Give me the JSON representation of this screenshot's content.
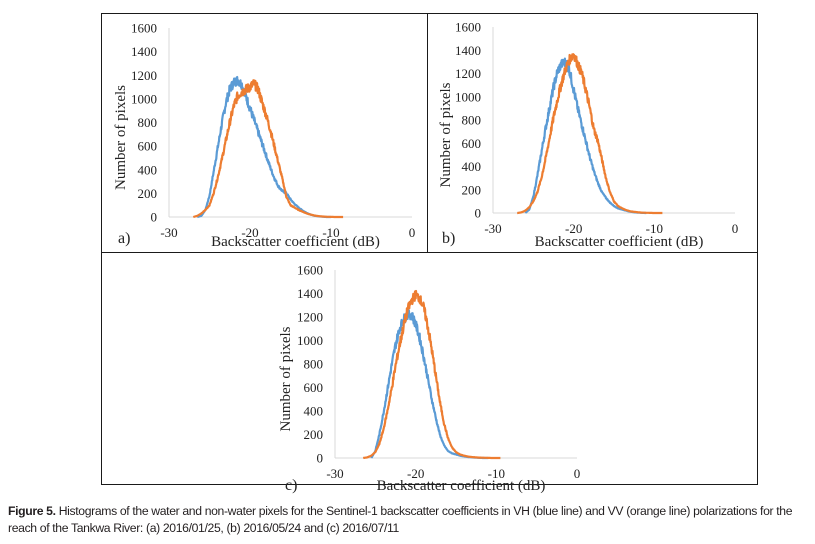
{
  "figure": {
    "caption_label": "Figure 5.",
    "caption_text": " Histograms of the water and non-water pixels for the Sentinel-1 backscatter coefficients in VH (blue line) and VV (orange line) polarizations for the reach of the Tankwa River: (a) 2016/01/25, (b) 2016/05/24 and (c) 2016/07/11"
  },
  "colors": {
    "VH": "#5b9bd5",
    "VV": "#ed7d31",
    "axis": "#d9d9d9"
  },
  "chart_data": [
    {
      "panel": "a)",
      "type": "line",
      "title": "",
      "xlabel": "Backscatter coefficient (dB)",
      "ylabel": "Number of pixels",
      "xlim": [
        -30,
        0
      ],
      "ylim": [
        0,
        1600
      ],
      "xticks": [
        -30,
        -20,
        -10,
        0
      ],
      "yticks": [
        0,
        200,
        400,
        600,
        800,
        1000,
        1200,
        1400,
        1600
      ],
      "grid": false,
      "legend": "none",
      "series": [
        {
          "name": "VH",
          "color": "#5b9bd5",
          "x": [
            -26.5,
            -26,
            -25.5,
            -25,
            -24.5,
            -24,
            -23.5,
            -23,
            -22.5,
            -22,
            -21.5,
            -21,
            -20.5,
            -20,
            -19.5,
            -19,
            -18.5,
            -18,
            -17.5,
            -17,
            -16.5,
            -16,
            -15.5,
            -15,
            -14.5,
            -14,
            -13.5,
            -13,
            -12.5,
            -12,
            -11.5,
            -11,
            -10.5,
            -10
          ],
          "y": [
            0,
            10,
            60,
            180,
            380,
            580,
            780,
            960,
            1080,
            1140,
            1160,
            1120,
            1020,
            920,
            820,
            720,
            620,
            520,
            420,
            330,
            260,
            220,
            200,
            150,
            110,
            80,
            55,
            35,
            20,
            10,
            5,
            2,
            0,
            0
          ]
        },
        {
          "name": "VV",
          "color": "#ed7d31",
          "x": [
            -27,
            -26.5,
            -26,
            -25.5,
            -25,
            -24.5,
            -24,
            -23.5,
            -23,
            -22.5,
            -22,
            -21.5,
            -21,
            -20.5,
            -20,
            -19.5,
            -19,
            -18.5,
            -18,
            -17.5,
            -17,
            -16.5,
            -16,
            -15.5,
            -15,
            -14.5,
            -14,
            -13.5,
            -13,
            -12.5,
            -12,
            -11.5,
            -11,
            -10.5,
            -10,
            -9.5,
            -9,
            -8.5
          ],
          "y": [
            0,
            10,
            30,
            60,
            100,
            200,
            330,
            480,
            640,
            800,
            940,
            1030,
            1060,
            1080,
            1100,
            1130,
            1080,
            970,
            860,
            740,
            600,
            460,
            320,
            170,
            100,
            80,
            60,
            45,
            30,
            20,
            12,
            7,
            4,
            2,
            1,
            0,
            0,
            0
          ]
        }
      ]
    },
    {
      "panel": "b)",
      "type": "line",
      "title": "",
      "xlabel": "Backscatter coefficient (dB)",
      "ylabel": "Number of pixels",
      "xlim": [
        -30,
        0
      ],
      "ylim": [
        0,
        1600
      ],
      "xticks": [
        -30,
        -20,
        -10,
        0
      ],
      "yticks": [
        0,
        200,
        400,
        600,
        800,
        1000,
        1200,
        1400,
        1600
      ],
      "grid": false,
      "legend": "none",
      "series": [
        {
          "name": "VH",
          "color": "#5b9bd5",
          "x": [
            -26,
            -25.5,
            -25,
            -24.5,
            -24,
            -23.5,
            -23,
            -22.5,
            -22,
            -21.5,
            -21,
            -20.5,
            -20,
            -19.5,
            -19,
            -18.5,
            -18,
            -17.5,
            -17,
            -16.5,
            -16,
            -15.5,
            -15,
            -14.5,
            -14,
            -13.5,
            -13,
            -12.5,
            -12,
            -11.5,
            -11
          ],
          "y": [
            0,
            30,
            140,
            320,
            520,
            720,
            900,
            1080,
            1220,
            1280,
            1300,
            1220,
            1060,
            900,
            760,
            620,
            480,
            360,
            260,
            180,
            130,
            90,
            60,
            40,
            30,
            20,
            12,
            6,
            3,
            1,
            0
          ]
        },
        {
          "name": "VV",
          "color": "#ed7d31",
          "x": [
            -27,
            -26.5,
            -26,
            -25.5,
            -25,
            -24.5,
            -24,
            -23.5,
            -23,
            -22.5,
            -22,
            -21.5,
            -21,
            -20.5,
            -20,
            -19.5,
            -19,
            -18.5,
            -18,
            -17.5,
            -17,
            -16.5,
            -16,
            -15.5,
            -15,
            -14.5,
            -14,
            -13.5,
            -13,
            -12.5,
            -12,
            -11.5,
            -11,
            -10.5,
            -10,
            -9.5,
            -9
          ],
          "y": [
            0,
            5,
            20,
            50,
            100,
            180,
            300,
            460,
            640,
            820,
            980,
            1120,
            1240,
            1320,
            1370,
            1280,
            1200,
            1060,
            900,
            720,
            620,
            460,
            300,
            180,
            100,
            60,
            40,
            25,
            15,
            10,
            6,
            3,
            2,
            1,
            0,
            0,
            0
          ]
        }
      ]
    },
    {
      "panel": "c)",
      "type": "line",
      "title": "",
      "xlabel": "Backscatter coefficient (dB)",
      "ylabel": "Number of pixels",
      "xlim": [
        -30,
        0
      ],
      "ylim": [
        0,
        1600
      ],
      "xticks": [
        -30,
        -20,
        -10,
        0
      ],
      "yticks": [
        0,
        200,
        400,
        600,
        800,
        1000,
        1200,
        1400,
        1600
      ],
      "grid": false,
      "legend": "none",
      "series": [
        {
          "name": "VH",
          "color": "#5b9bd5",
          "x": [
            -25.5,
            -25,
            -24.5,
            -24,
            -23.5,
            -23,
            -22.5,
            -22,
            -21.5,
            -21,
            -20.5,
            -20,
            -19.5,
            -19,
            -18.5,
            -18,
            -17.5,
            -17,
            -16.5,
            -16,
            -15.5,
            -15,
            -14.5,
            -14,
            -13.5,
            -13,
            -12.5,
            -12,
            -11.5,
            -11
          ],
          "y": [
            0,
            60,
            200,
            380,
            580,
            780,
            960,
            1100,
            1180,
            1220,
            1220,
            1140,
            1020,
            860,
            680,
            500,
            340,
            200,
            110,
            60,
            40,
            30,
            20,
            14,
            8,
            5,
            3,
            1,
            0,
            0
          ]
        },
        {
          "name": "VV",
          "color": "#ed7d31",
          "x": [
            -26.5,
            -26,
            -25.5,
            -25,
            -24.5,
            -24,
            -23.5,
            -23,
            -22.5,
            -22,
            -21.5,
            -21,
            -20.5,
            -20,
            -19.5,
            -19,
            -18.5,
            -18,
            -17.5,
            -17,
            -16.5,
            -16,
            -15.5,
            -15,
            -14.5,
            -14,
            -13.5,
            -13,
            -12.5,
            -12,
            -11.5,
            -11,
            -10.5,
            -10,
            -9.5
          ],
          "y": [
            0,
            5,
            20,
            50,
            120,
            240,
            400,
            580,
            780,
            960,
            1120,
            1260,
            1340,
            1390,
            1360,
            1280,
            1120,
            920,
            700,
            480,
            300,
            170,
            90,
            50,
            30,
            20,
            12,
            8,
            5,
            3,
            2,
            1,
            0,
            0,
            0
          ]
        }
      ]
    }
  ]
}
